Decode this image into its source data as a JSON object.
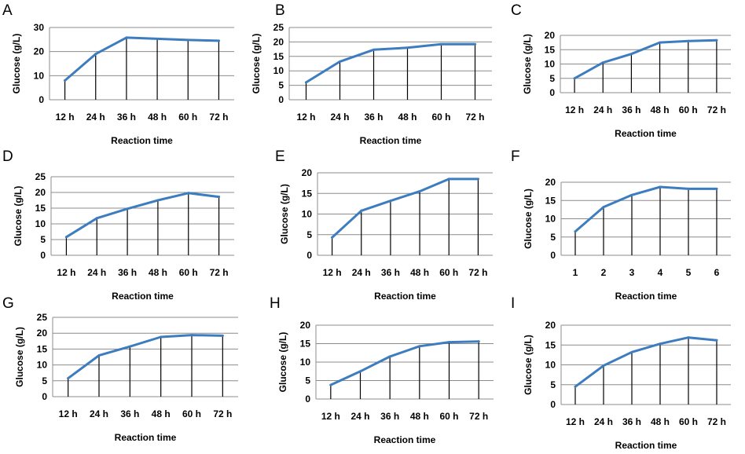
{
  "colors": {
    "series": "#3d7dbf",
    "grid": "#8c8c8c",
    "drop": "#000000"
  },
  "chart_data": [
    {
      "panel": "A",
      "type": "line",
      "xlabel": "Reaction time",
      "ylabel": "Glucose (g/L)",
      "categories": [
        "12 h",
        "24 h",
        "36 h",
        "48 h",
        "60 h",
        "72 h"
      ],
      "values": [
        8,
        19,
        25.8,
        25.3,
        24.8,
        24.5
      ],
      "ylim": [
        0,
        30
      ],
      "yticks": [
        "0",
        "10",
        "20",
        "30"
      ]
    },
    {
      "panel": "B",
      "type": "line",
      "xlabel": "Reaction time",
      "ylabel": "Glucose (g/L)",
      "categories": [
        "12 h",
        "24 h",
        "36 h",
        "48 h",
        "60 h",
        "72 h"
      ],
      "values": [
        6,
        13.2,
        17.3,
        18,
        19.2,
        19.2
      ],
      "ylim": [
        0,
        25
      ],
      "yticks": [
        "0",
        "5",
        "10",
        "15",
        "20",
        "25"
      ]
    },
    {
      "panel": "C",
      "type": "line",
      "xlabel": "Reaction time",
      "ylabel": "Glucose (g/L)",
      "categories": [
        "12 h",
        "24 h",
        "36 h",
        "48 h",
        "60 h",
        "72 h"
      ],
      "values": [
        5,
        10.5,
        13.5,
        17.5,
        18,
        18.3
      ],
      "ylim": [
        0,
        20
      ],
      "yticks": [
        "0",
        "5",
        "10",
        "15",
        "20"
      ]
    },
    {
      "panel": "D",
      "type": "line",
      "xlabel": "Reaction time",
      "ylabel": "Glucose (g/L)",
      "categories": [
        "12 h",
        "24 h",
        "36 h",
        "48 h",
        "60 h",
        "72 h"
      ],
      "values": [
        5.8,
        11.8,
        14.8,
        17.5,
        19.8,
        18.6
      ],
      "ylim": [
        0,
        25
      ],
      "yticks": [
        "0",
        "5",
        "10",
        "15",
        "20",
        "25"
      ]
    },
    {
      "panel": "E",
      "type": "line",
      "xlabel": "Reaction time",
      "ylabel": "Glucose (g/L)",
      "categories": [
        "12 h",
        "24 h",
        "36 h",
        "48 h",
        "60 h",
        "72 h"
      ],
      "values": [
        4.3,
        10.8,
        13.2,
        15.5,
        18.5,
        18.5
      ],
      "ylim": [
        0,
        20
      ],
      "yticks": [
        "0",
        "5",
        "10",
        "15",
        "20"
      ]
    },
    {
      "panel": "F",
      "type": "line",
      "xlabel": "Reaction time",
      "ylabel": "Glucose (g/L)",
      "categories": [
        "1",
        "2",
        "3",
        "4",
        "5",
        "6"
      ],
      "values": [
        6.5,
        13.2,
        16.5,
        18.7,
        18.2,
        18.2
      ],
      "ylim": [
        0,
        20
      ],
      "yticks": [
        "0",
        "5",
        "10",
        "15",
        "20"
      ]
    },
    {
      "panel": "G",
      "type": "line",
      "xlabel": "Reaction time",
      "ylabel": "Glucose (g/L)",
      "categories": [
        "12 h",
        "24 h",
        "36 h",
        "48 h",
        "60 h",
        "72 h"
      ],
      "values": [
        5.8,
        13,
        15.8,
        18.8,
        19.4,
        19.2
      ],
      "ylim": [
        0,
        25
      ],
      "yticks": [
        "0",
        "5",
        "10",
        "15",
        "20",
        "25"
      ]
    },
    {
      "panel": "H",
      "type": "line",
      "xlabel": "Reaction time",
      "ylabel": "Glucose (g/L)",
      "categories": [
        "12 h",
        "24 h",
        "36 h",
        "48 h",
        "60 h",
        "72 h"
      ],
      "values": [
        3.8,
        7.5,
        11.5,
        14.3,
        15.4,
        15.6
      ],
      "ylim": [
        0,
        20
      ],
      "yticks": [
        "0",
        "5",
        "10",
        "15",
        "20"
      ]
    },
    {
      "panel": "I",
      "type": "line",
      "xlabel": "Reaction time",
      "ylabel": "Glucose (g/L)",
      "categories": [
        "12 h",
        "24 h",
        "36 h",
        "48 h",
        "60 h",
        "72 h"
      ],
      "values": [
        4.5,
        9.8,
        13.2,
        15.3,
        16.9,
        16.2
      ],
      "ylim": [
        0,
        20
      ],
      "yticks": [
        "0",
        "5",
        "10",
        "15",
        "20"
      ]
    }
  ]
}
